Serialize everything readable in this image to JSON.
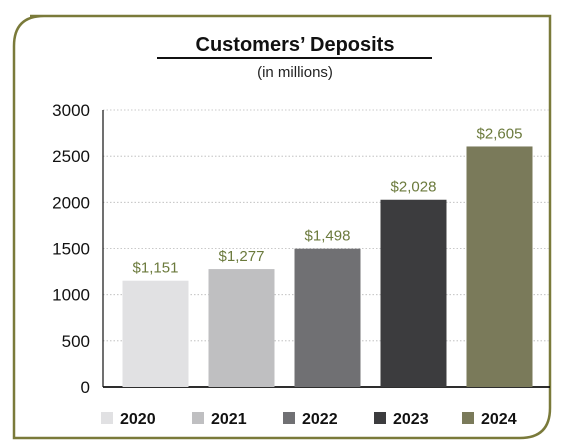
{
  "frame": {
    "border_color": "#7a7a3a"
  },
  "chart_data": {
    "type": "bar",
    "title": "Customers’ Deposits",
    "subtitle": "(in millions)",
    "categories": [
      "2020",
      "2021",
      "2022",
      "2023",
      "2024"
    ],
    "values": [
      1151,
      1277,
      1498,
      2028,
      2605
    ],
    "value_labels": [
      "$1,151",
      "$1,277",
      "$1,498",
      "$2,028",
      "$2,605"
    ],
    "colors": [
      "#e1e1e3",
      "#bfbfc1",
      "#707073",
      "#3c3c3e",
      "#7a7a5a"
    ],
    "label_color": "#6b7a3c",
    "ylim": [
      0,
      3000
    ],
    "y_ticks": [
      0,
      500,
      1000,
      1500,
      2000,
      2500,
      3000
    ],
    "y_tick_labels": [
      "0",
      "500",
      "1000",
      "1500",
      "2000",
      "2500",
      "3000"
    ],
    "grid": true,
    "legend_position": "bottom",
    "legend": [
      "2020",
      "2021",
      "2022",
      "2023",
      "2024"
    ]
  }
}
